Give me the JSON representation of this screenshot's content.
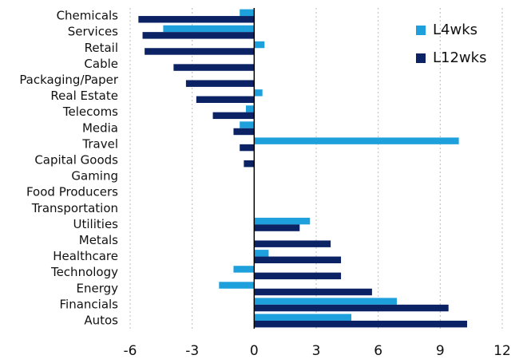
{
  "chart_data": {
    "type": "hbar",
    "categories": [
      "Chemicals",
      "Services",
      "Retail",
      "Cable",
      "Packaging/Paper",
      "Real Estate",
      "Telecoms",
      "Media",
      "Travel",
      "Capital Goods",
      "Gaming",
      "Food Producers",
      "Transportation",
      "Utilities",
      "Metals",
      "Healthcare",
      "Technology",
      "Energy",
      "Financials",
      "Autos"
    ],
    "series": [
      {
        "name": "L4wks",
        "color": "#1ea0dc",
        "values": [
          -0.7,
          -4.4,
          0.5,
          0,
          0,
          0.4,
          -0.4,
          -0.7,
          9.9,
          0,
          0,
          0,
          0,
          2.7,
          0,
          0.7,
          -1.0,
          -1.7,
          6.9,
          4.7
        ]
      },
      {
        "name": "L12wks",
        "color": "#0b2265",
        "values": [
          -5.6,
          -5.4,
          -5.3,
          -3.9,
          -3.3,
          -2.8,
          -2.0,
          -1.0,
          -0.7,
          -0.5,
          0,
          0,
          0,
          2.2,
          3.7,
          4.2,
          4.2,
          5.7,
          9.4,
          10.3
        ]
      }
    ],
    "xlim": [
      -6,
      12
    ],
    "xticks": [
      -6,
      -3,
      0,
      3,
      6,
      9,
      12
    ],
    "grid": true,
    "legend": "upper right"
  }
}
